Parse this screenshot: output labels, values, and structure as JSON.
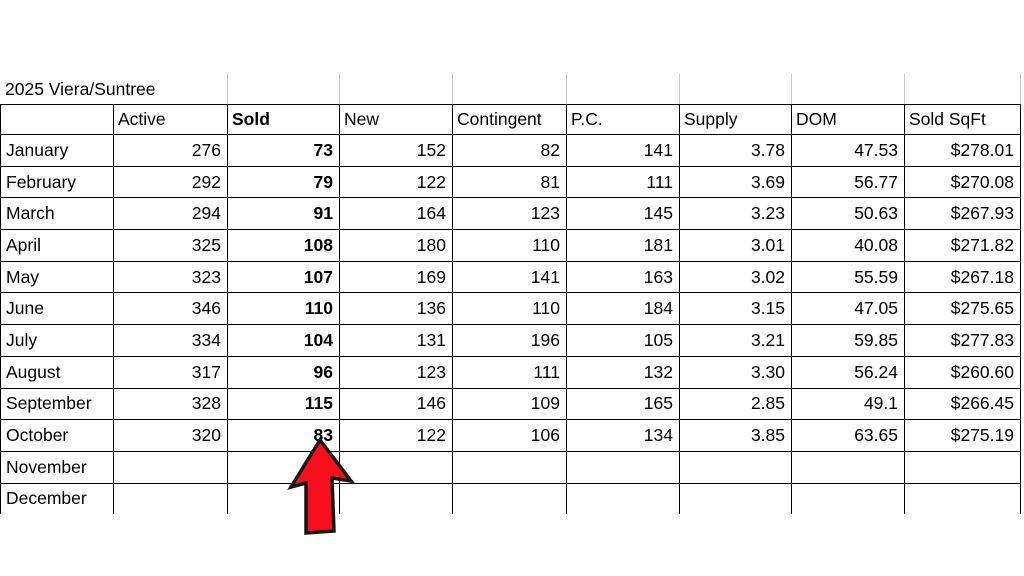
{
  "title": "2025 Viera/Suntree",
  "table": {
    "headers": [
      "",
      "Active",
      "Sold",
      "New",
      "Contingent",
      "P.C.",
      "Supply",
      "DOM",
      "Sold SqFt"
    ],
    "rows": [
      [
        "January",
        "276",
        "73",
        "152",
        "82",
        "141",
        "3.78",
        "47.53",
        "$278.01"
      ],
      [
        "February",
        "292",
        "79",
        "122",
        "81",
        "111",
        "3.69",
        "56.77",
        "$270.08"
      ],
      [
        "March",
        "294",
        "91",
        "164",
        "123",
        "145",
        "3.23",
        "50.63",
        "$267.93"
      ],
      [
        "April",
        "325",
        "108",
        "180",
        "110",
        "181",
        "3.01",
        "40.08",
        "$271.82"
      ],
      [
        "May",
        "323",
        "107",
        "169",
        "141",
        "163",
        "3.02",
        "55.59",
        "$267.18"
      ],
      [
        "June",
        "346",
        "110",
        "136",
        "110",
        "184",
        "3.15",
        "47.05",
        "$275.65"
      ],
      [
        "July",
        "334",
        "104",
        "131",
        "196",
        "105",
        "3.21",
        "59.85",
        "$277.83"
      ],
      [
        "August",
        "317",
        "96",
        "123",
        "111",
        "132",
        "3.30",
        "56.24",
        "$260.60"
      ],
      [
        "September",
        "328",
        "115",
        "146",
        "109",
        "165",
        "2.85",
        "49.1",
        "$266.45"
      ],
      [
        "October",
        "320",
        "83",
        "122",
        "106",
        "134",
        "3.85",
        "63.65",
        "$275.19"
      ],
      [
        "November",
        "",
        "",
        "",
        "",
        "",
        "",
        "",
        ""
      ],
      [
        "December",
        "",
        "",
        "",
        "",
        "",
        "",
        "",
        ""
      ]
    ]
  },
  "annotation": {
    "arrow_type": "up-arrow",
    "arrow_fill": "#f8101c",
    "arrow_outline": "#161616",
    "points_to": "October Sold 83"
  },
  "colors": {
    "background": "#ffffff",
    "table_border": "#000000",
    "title_row_gridline": "#c8c8c8",
    "text": "#000000"
  }
}
